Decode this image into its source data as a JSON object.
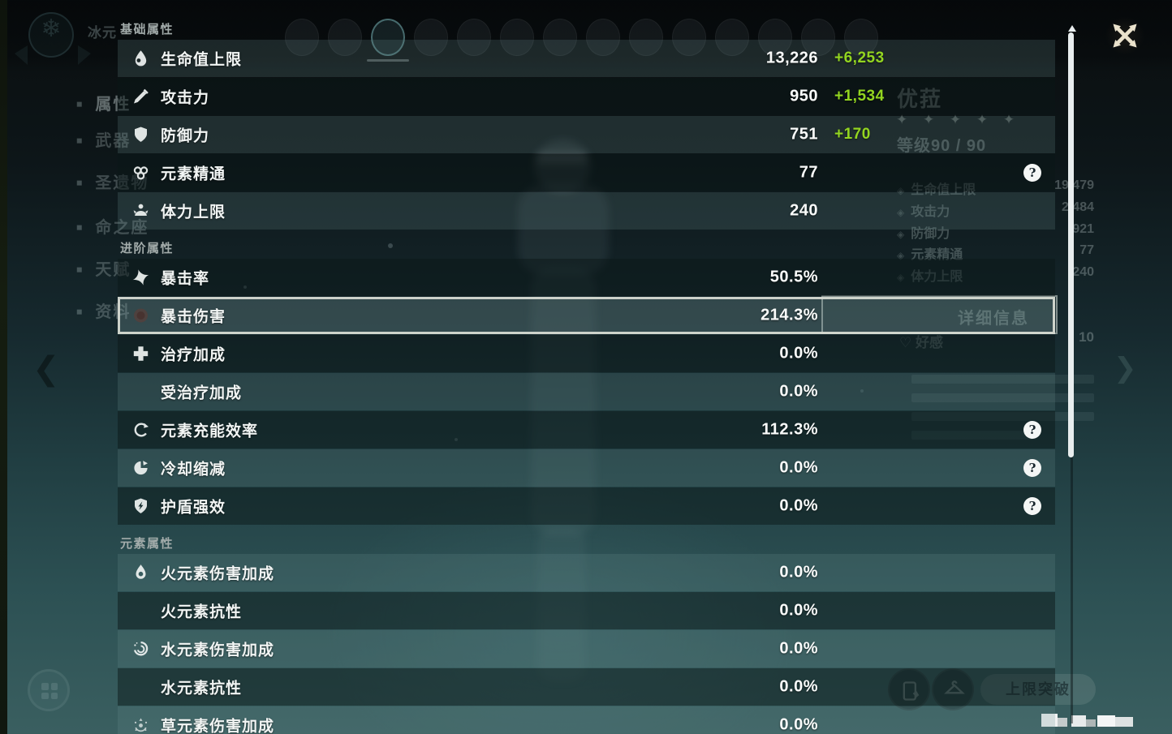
{
  "panel": {
    "groups": [
      {
        "title": "基础属性",
        "rows": [
          {
            "icon": "hp-icon",
            "label": "生命值上限",
            "value": "13,226",
            "bonus": "+6,253"
          },
          {
            "icon": "atk-icon",
            "label": "攻击力",
            "value": "950",
            "bonus": "+1,534"
          },
          {
            "icon": "def-icon",
            "label": "防御力",
            "value": "751",
            "bonus": "+170"
          },
          {
            "icon": "elemental-mastery-icon",
            "label": "元素精通",
            "value": "77",
            "help": true
          },
          {
            "icon": "stamina-icon",
            "label": "体力上限",
            "value": "240"
          }
        ]
      },
      {
        "title": "进阶属性",
        "rows": [
          {
            "icon": "crit-rate-icon",
            "label": "暴击率",
            "value": "50.5%"
          },
          {
            "icon": "crit-dmg-icon",
            "label": "暴击伤害",
            "value": "214.3%",
            "highlighted": true
          },
          {
            "icon": "healing-bonus-icon",
            "label": "治疗加成",
            "value": "0.0%"
          },
          {
            "icon": null,
            "label": "受治疗加成",
            "value": "0.0%"
          },
          {
            "icon": "energy-recharge-icon",
            "label": "元素充能效率",
            "value": "112.3%",
            "help": true
          },
          {
            "icon": "cooldown-reduction-icon",
            "label": "冷却缩减",
            "value": "0.0%",
            "help": true
          },
          {
            "icon": "shield-strength-icon",
            "label": "护盾强效",
            "value": "0.0%",
            "help": true
          }
        ]
      },
      {
        "title": "元素属性",
        "rows": [
          {
            "icon": "pyro-icon",
            "label": "火元素伤害加成",
            "value": "0.0%"
          },
          {
            "icon": null,
            "label": "火元素抗性",
            "value": "0.0%"
          },
          {
            "icon": "hydro-icon",
            "label": "水元素伤害加成",
            "value": "0.0%"
          },
          {
            "icon": null,
            "label": "水元素抗性",
            "value": "0.0%"
          },
          {
            "icon": "dendro-icon",
            "label": "草元素伤害加成",
            "value": "0.0%"
          }
        ]
      }
    ],
    "help_symbol": "?"
  },
  "colors": {
    "bonus_green": "#93d520",
    "highlight_border": "#d6dad2",
    "scroll_thumb": "#e8edee"
  },
  "background": {
    "element_label": "冰元",
    "sidebar_items": [
      "属性",
      "武器",
      "圣遗物",
      "命之座",
      "天赋",
      "资料"
    ],
    "character": {
      "name": "优菈",
      "stars": "✦ ✦ ✦ ✦ ✦",
      "level_label": "等级90 / 90",
      "stats": [
        {
          "label": "生命值上限",
          "value": "19,479"
        },
        {
          "label": "攻击力",
          "value": "2,484"
        },
        {
          "label": "防御力",
          "value": "921"
        },
        {
          "label": "元素精通",
          "value": "77"
        },
        {
          "label": "体力上限",
          "value": "240"
        }
      ],
      "detail_button_label": "详细信息",
      "friendship_label": "好感",
      "friendship_value": "10"
    },
    "ascend_button_label": "上限突破"
  }
}
